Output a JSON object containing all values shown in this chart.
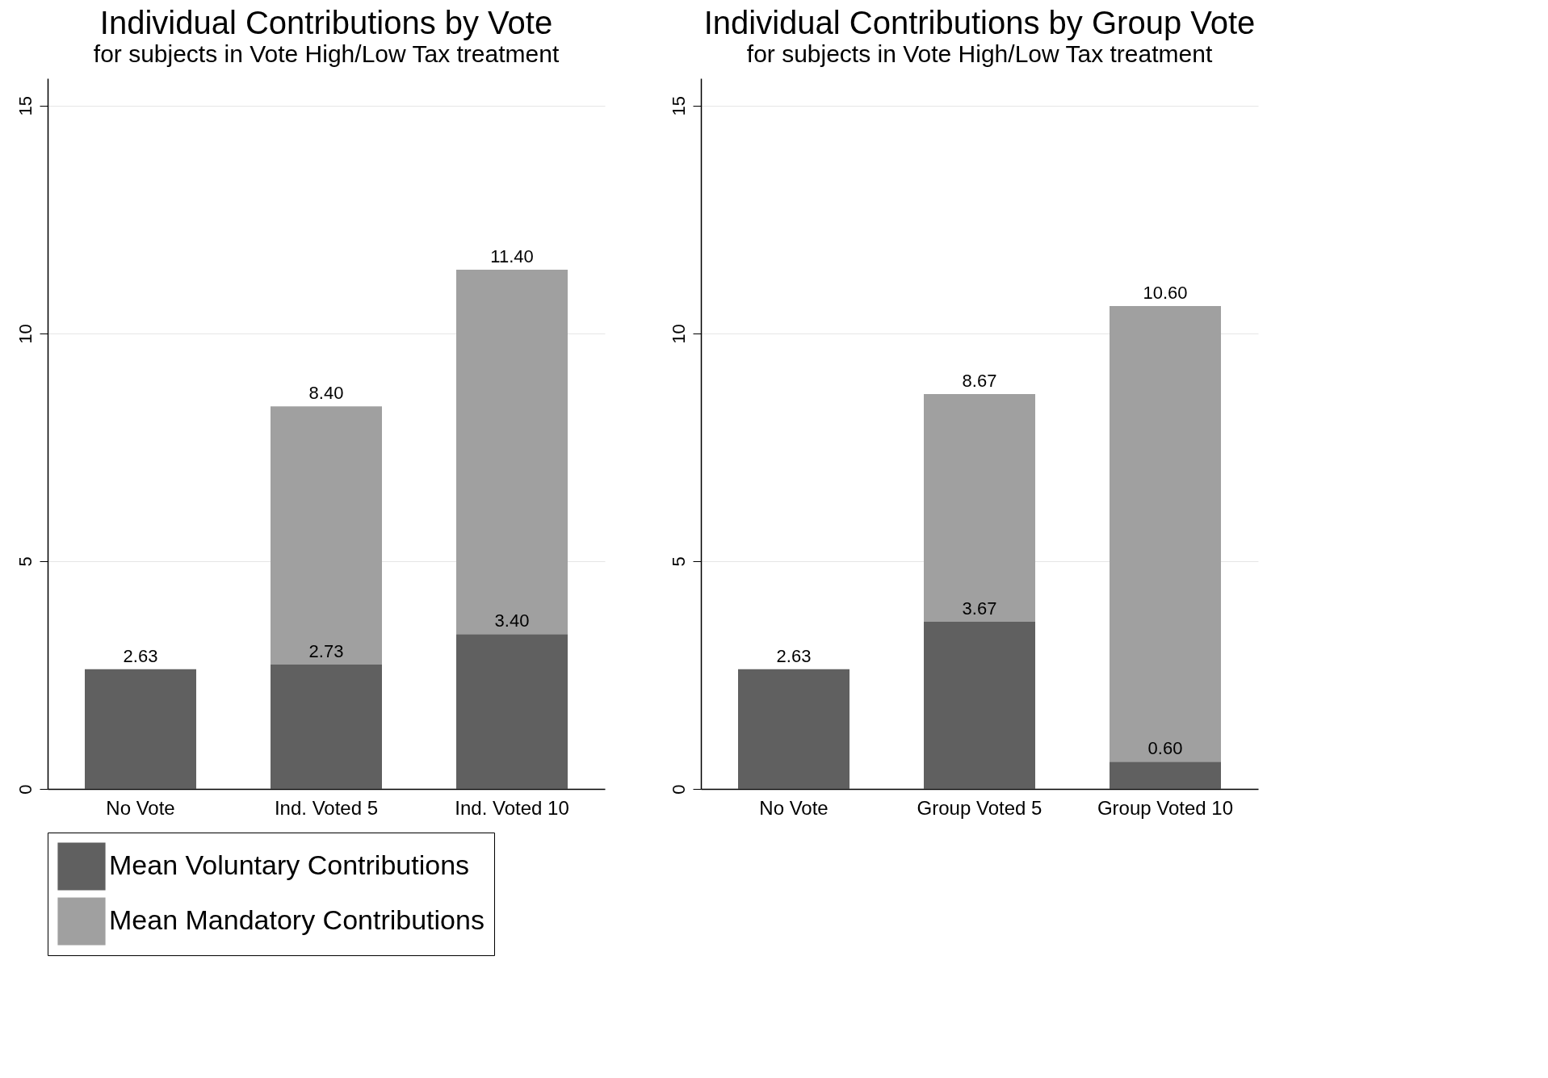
{
  "chart_data": [
    {
      "type": "bar",
      "title": "Individual Contributions by Vote",
      "subtitle": "for subjects in Vote High/Low Tax treatment",
      "stacked": true,
      "categories": [
        "No Vote",
        "Ind. Voted 5",
        "Ind. Voted 10"
      ],
      "series": [
        {
          "name": "Mean Voluntary Contributions",
          "color": "#606060",
          "values": [
            2.63,
            2.73,
            3.4
          ],
          "value_labels": [
            "2.63",
            "2.73",
            "3.40"
          ]
        },
        {
          "name": "Mean Mandatory Contributions",
          "color": "#a0a0a0",
          "values": [
            null,
            5.67,
            8.0
          ]
        }
      ],
      "totals": [
        null,
        "8.40",
        "11.40"
      ],
      "ylim": [
        0,
        15.6
      ],
      "yticks": [
        0,
        5,
        10,
        15
      ],
      "grid": "y",
      "legend": "bottom"
    },
    {
      "type": "bar",
      "title": "Individual Contributions by Group Vote",
      "subtitle": "for subjects in Vote High/Low Tax treatment",
      "stacked": true,
      "categories": [
        "No Vote",
        "Group Voted 5",
        "Group Voted 10"
      ],
      "series": [
        {
          "name": "Mean Voluntary Contributions",
          "color": "#606060",
          "values": [
            2.63,
            3.67,
            0.6
          ],
          "value_labels": [
            "2.63",
            "3.67",
            "0.60"
          ]
        },
        {
          "name": "Mean Mandatory Contributions",
          "color": "#a0a0a0",
          "values": [
            null,
            5.0,
            10.0
          ]
        }
      ],
      "totals": [
        null,
        "8.67",
        "10.60"
      ],
      "ylim": [
        0,
        15.6
      ],
      "yticks": [
        0,
        5,
        10,
        15
      ],
      "grid": "y",
      "legend": "bottom"
    }
  ]
}
